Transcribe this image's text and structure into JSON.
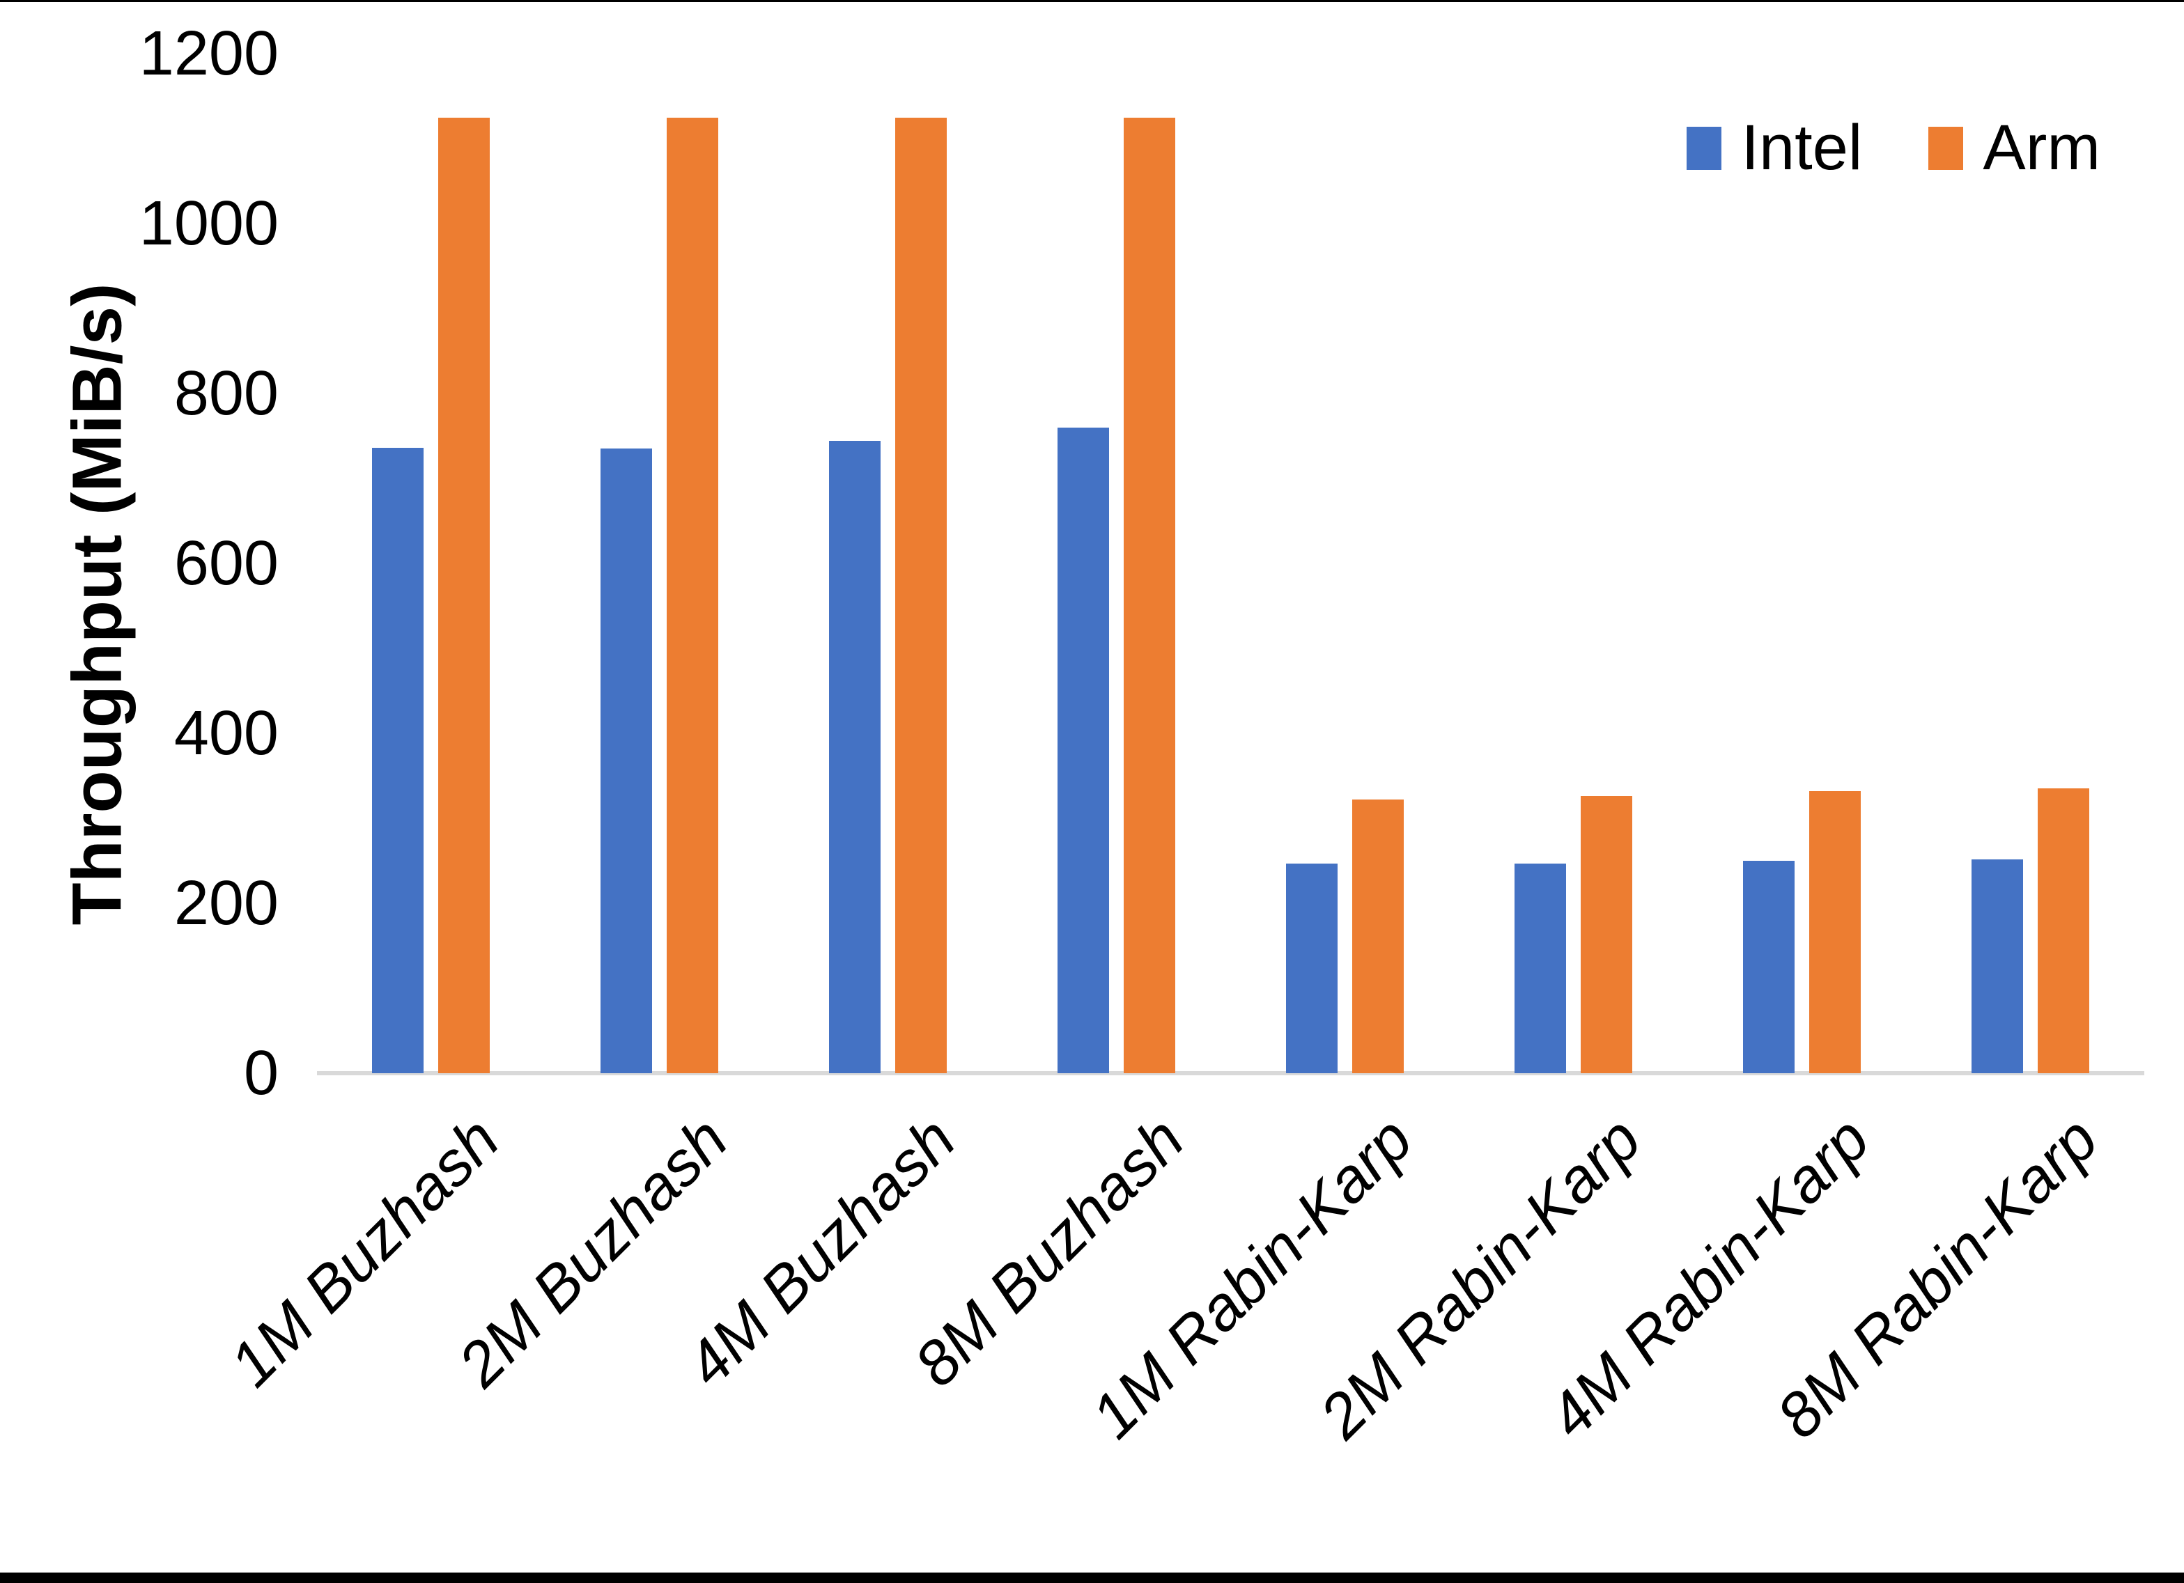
{
  "chart_data": {
    "type": "bar",
    "title": "",
    "ylabel": "Throughput (MiB/s)",
    "xlabel": "",
    "ylim": [
      0,
      1200
    ],
    "yticks": [
      0,
      200,
      400,
      600,
      800,
      1000,
      1200
    ],
    "grid": false,
    "legend_position": "top-right",
    "categories": [
      "1M Buzhash",
      "2M Buzhash",
      "4M Buzhash",
      "8M Buzhash",
      "1M Rabin-Karp",
      "2M Rabin-Karp",
      "4M Rabin-Karp",
      "8M Rabin-Karp"
    ],
    "series": [
      {
        "name": "Intel",
        "color": "#4472C4",
        "values": [
          736,
          735,
          744,
          760,
          247,
          247,
          250,
          252
        ]
      },
      {
        "name": "Arm",
        "color": "#ED7D31",
        "values": [
          1125,
          1125,
          1125,
          1125,
          322,
          326,
          332,
          335
        ]
      }
    ]
  },
  "colors": {
    "background": "#FFFFFF",
    "axis_line": "#D9D9D9",
    "text": "#000000",
    "frame": "#000000"
  }
}
